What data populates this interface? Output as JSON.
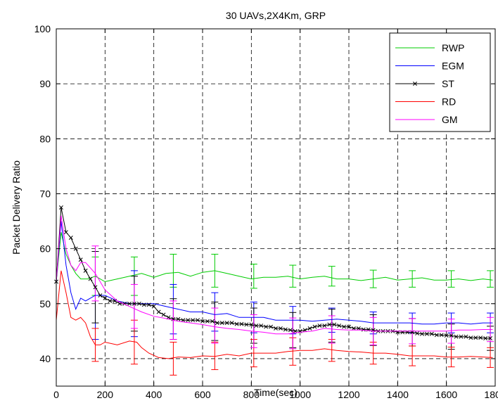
{
  "chart_data": {
    "type": "line",
    "title": "30 UAVs,2X4Km, GRP",
    "xlabel": "Time(sec)",
    "ylabel": "Packet Delivery Ratio",
    "xlim": [
      0,
      1800
    ],
    "ylim": [
      35,
      100
    ],
    "xticks": [
      0,
      200,
      400,
      600,
      800,
      1000,
      1200,
      1400,
      1600,
      1800
    ],
    "yticks": [
      40,
      50,
      60,
      70,
      80,
      90,
      100
    ],
    "grid": true,
    "grid_style": "dashed",
    "legend_position": "top-right",
    "series": [
      {
        "name": "RWP",
        "color": "#00cc00",
        "marker": "none",
        "x": [
          0,
          20,
          40,
          60,
          80,
          100,
          130,
          160,
          200,
          250,
          300,
          350,
          400,
          450,
          500,
          550,
          600,
          650,
          700,
          750,
          800,
          850,
          900,
          950,
          1000,
          1050,
          1100,
          1150,
          1200,
          1250,
          1300,
          1350,
          1400,
          1450,
          1500,
          1550,
          1600,
          1650,
          1700,
          1750,
          1790
        ],
        "y": [
          54,
          63,
          59,
          57,
          55.5,
          54.5,
          54.5,
          55,
          54,
          54.5,
          55,
          55.5,
          54.8,
          55.5,
          55.7,
          55,
          55.7,
          56,
          55.5,
          55,
          54.5,
          54.8,
          54.8,
          55,
          54.5,
          54.8,
          55,
          54.5,
          54.5,
          54.2,
          54.5,
          54.8,
          54.3,
          54.5,
          54.7,
          54.3,
          54.3,
          54.5,
          54.2,
          54.5,
          54.3
        ],
        "error_x": [
          160,
          320,
          480,
          650,
          810,
          970,
          1130,
          1300,
          1460,
          1620,
          1780
        ],
        "error_y": [
          55,
          55,
          56,
          56,
          55,
          55,
          55,
          54.5,
          54.5,
          54.5,
          54.5
        ],
        "error_err": [
          3.5,
          3.5,
          3,
          3,
          2.2,
          2,
          1.8,
          1.6,
          1.5,
          1.5,
          1.5
        ]
      },
      {
        "name": "EGM",
        "color": "#0000ff",
        "marker": "none",
        "x": [
          0,
          20,
          40,
          60,
          80,
          100,
          120,
          160,
          200,
          250,
          300,
          350,
          400,
          450,
          500,
          550,
          600,
          650,
          700,
          750,
          800,
          850,
          900,
          950,
          1000,
          1050,
          1100,
          1150,
          1200,
          1250,
          1300,
          1350,
          1400,
          1450,
          1500,
          1550,
          1600,
          1650,
          1700,
          1750,
          1790
        ],
        "y": [
          54,
          65,
          57,
          52,
          49,
          51,
          50.5,
          51.5,
          51.5,
          50.5,
          50,
          50,
          50,
          49.5,
          49,
          48.5,
          48.5,
          48,
          48.2,
          47.5,
          47.5,
          47.5,
          47,
          47,
          47,
          46.8,
          47,
          47.2,
          47,
          46.8,
          46.5,
          46.5,
          46.5,
          46.5,
          46.3,
          46.3,
          46.5,
          46.5,
          46.3,
          46.5,
          46.5
        ],
        "error_x": [
          160,
          320,
          480,
          650,
          810,
          970,
          1130,
          1300,
          1460,
          1620,
          1780
        ],
        "error_y": [
          51.5,
          50,
          49,
          48.5,
          47.5,
          47,
          47,
          46.5,
          46.5,
          46.5,
          46.5
        ],
        "error_err": [
          8,
          6,
          4.5,
          3.5,
          2.8,
          2.5,
          2.2,
          2,
          1.8,
          1.8,
          1.8
        ]
      },
      {
        "name": "ST",
        "color": "#000000",
        "marker": "x",
        "x": [
          0,
          20,
          40,
          60,
          80,
          100,
          120,
          140,
          160,
          180,
          200,
          220,
          240,
          260,
          280,
          300,
          320,
          340,
          360,
          380,
          400,
          420,
          440,
          460,
          480,
          500,
          520,
          540,
          560,
          580,
          600,
          620,
          640,
          660,
          680,
          700,
          720,
          740,
          760,
          780,
          800,
          820,
          840,
          860,
          880,
          900,
          920,
          940,
          960,
          980,
          1000,
          1020,
          1040,
          1060,
          1080,
          1100,
          1120,
          1140,
          1160,
          1180,
          1200,
          1220,
          1240,
          1260,
          1280,
          1300,
          1320,
          1340,
          1360,
          1380,
          1400,
          1420,
          1440,
          1460,
          1480,
          1500,
          1520,
          1540,
          1560,
          1580,
          1600,
          1620,
          1640,
          1660,
          1680,
          1700,
          1720,
          1740,
          1760,
          1780
        ],
        "y": [
          54,
          67.5,
          63,
          62,
          60,
          58,
          56,
          54.5,
          53,
          51.5,
          51,
          50.5,
          50.5,
          50,
          50,
          50,
          50,
          50,
          49.8,
          49.8,
          49.5,
          48.5,
          48,
          47.5,
          47.2,
          47.2,
          47,
          47,
          47,
          47,
          46.8,
          46.8,
          46.8,
          46.5,
          46.5,
          46.5,
          46.5,
          46.3,
          46.3,
          46.2,
          46.2,
          46,
          46,
          45.8,
          45.8,
          45.5,
          45.5,
          45.3,
          45.2,
          45,
          45,
          45.2,
          45.5,
          45.8,
          46,
          46,
          46.2,
          46.2,
          46,
          45.8,
          45.8,
          45.5,
          45.5,
          45.3,
          45.3,
          45.2,
          45,
          45,
          45,
          45,
          44.8,
          44.8,
          44.8,
          44.8,
          44.6,
          44.5,
          44.5,
          44.5,
          44.3,
          44.3,
          44.2,
          44.2,
          44,
          44,
          44,
          43.8,
          43.8,
          43.8,
          43.7,
          43.7
        ],
        "error_x": [
          160,
          320,
          480,
          650,
          810,
          970,
          1130,
          1300,
          1460,
          1620,
          1780
        ],
        "error_y": [
          53,
          50,
          47.2,
          46.8,
          46,
          45.2,
          46,
          45.2,
          44.8,
          44,
          43.7
        ],
        "error_err": [
          6.5,
          5,
          3.7,
          3.5,
          3.2,
          3.2,
          3,
          2.8,
          2.5,
          2.3,
          2.2
        ]
      },
      {
        "name": "RD",
        "color": "#ff0000",
        "marker": "none",
        "x": [
          0,
          20,
          40,
          60,
          80,
          100,
          120,
          140,
          160,
          180,
          200,
          250,
          300,
          330,
          350,
          380,
          420,
          460,
          500,
          550,
          600,
          650,
          700,
          750,
          800,
          850,
          900,
          950,
          1000,
          1050,
          1100,
          1150,
          1200,
          1250,
          1300,
          1350,
          1400,
          1450,
          1500,
          1550,
          1600,
          1650,
          1700,
          1750,
          1790
        ],
        "y": [
          47,
          56,
          52,
          47.5,
          47,
          47.5,
          46.5,
          44,
          42.5,
          42.5,
          43,
          42.5,
          43.2,
          43,
          42,
          41,
          40.2,
          40,
          40.3,
          40.2,
          40.5,
          40.4,
          40.8,
          40.5,
          41,
          41,
          41,
          41.3,
          41.5,
          41.5,
          41.8,
          41.5,
          41.3,
          41.2,
          41,
          41,
          40.8,
          40.5,
          40.5,
          40.5,
          40.3,
          40.3,
          40.4,
          40.3,
          40.2
        ],
        "error_x": [
          160,
          320,
          480,
          650,
          810,
          970,
          1130,
          1300,
          1460,
          1620,
          1780
        ],
        "error_y": [
          42.5,
          43,
          40,
          40.5,
          41,
          41.3,
          41.5,
          41,
          40.5,
          40.3,
          40.2
        ],
        "error_err": [
          3,
          4,
          3,
          2.5,
          2.5,
          2.5,
          2,
          2,
          1.8,
          1.8,
          1.8
        ]
      },
      {
        "name": "GM",
        "color": "#ff00ff",
        "marker": "none",
        "x": [
          0,
          20,
          40,
          60,
          80,
          100,
          120,
          160,
          200,
          250,
          300,
          350,
          400,
          450,
          500,
          550,
          600,
          650,
          700,
          750,
          800,
          850,
          900,
          950,
          1000,
          1050,
          1100,
          1150,
          1200,
          1250,
          1300,
          1350,
          1400,
          1450,
          1500,
          1550,
          1600,
          1650,
          1700,
          1750,
          1790
        ],
        "y": [
          54,
          66,
          60,
          57,
          56,
          57.5,
          57.5,
          55.5,
          52.5,
          50.5,
          49.5,
          48.5,
          47.7,
          47.3,
          46.8,
          46.5,
          46.2,
          45.8,
          45.5,
          45.3,
          45,
          44.8,
          44.5,
          44.5,
          44.8,
          45,
          45.5,
          45.3,
          45.2,
          45.2,
          45,
          45,
          45,
          45,
          45,
          45,
          45,
          45.2,
          45.2,
          45.3,
          45.3
        ],
        "error_x": [
          160,
          320,
          480,
          650,
          810,
          970,
          1130,
          1300,
          1460,
          1620,
          1780
        ],
        "error_y": [
          55.5,
          49.5,
          47,
          46,
          45,
          44.6,
          45.3,
          45,
          45,
          45,
          45.3
        ],
        "error_err": [
          5,
          4,
          3.5,
          3.2,
          3,
          2.8,
          2.5,
          2.5,
          2.3,
          2.2,
          2.2
        ]
      }
    ]
  }
}
